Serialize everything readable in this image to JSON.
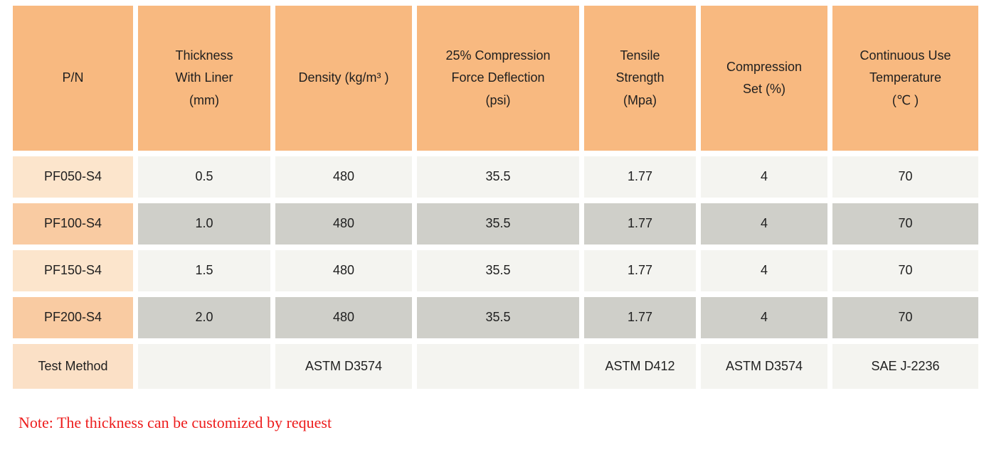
{
  "table": {
    "headers": [
      {
        "key": "pn",
        "label": "P/N"
      },
      {
        "key": "thickness",
        "label": "Thickness\nWith Liner\n(mm)"
      },
      {
        "key": "density",
        "label": "Density (kg/m³ )"
      },
      {
        "key": "cfd",
        "label": "25% Compression\nForce Deflection\n(psi)"
      },
      {
        "key": "tensile",
        "label": "Tensile\nStrength\n(Mpa)"
      },
      {
        "key": "compression",
        "label": "Compression\nSet (%)"
      },
      {
        "key": "temperature",
        "label": "Continuous Use\nTemperature\n(℃ )"
      }
    ],
    "rows": [
      {
        "variant": "light",
        "cells": [
          "PF050-S4",
          "0.5",
          "480",
          "35.5",
          "1.77",
          "4",
          "70"
        ]
      },
      {
        "variant": "dark",
        "cells": [
          "PF100-S4",
          "1.0",
          "480",
          "35.5",
          "1.77",
          "4",
          "70"
        ]
      },
      {
        "variant": "light",
        "cells": [
          "PF150-S4",
          "1.5",
          "480",
          "35.5",
          "1.77",
          "4",
          "70"
        ]
      },
      {
        "variant": "dark",
        "cells": [
          "PF200-S4",
          "2.0",
          "480",
          "35.5",
          "1.77",
          "4",
          "70"
        ]
      },
      {
        "variant": "test",
        "cells": [
          "Test Method",
          "",
          "ASTM D3574",
          "",
          "ASTM D412",
          "ASTM D3574",
          "SAE J-2236"
        ]
      }
    ]
  },
  "note": {
    "text": "Note: The thickness can be customized by request"
  },
  "colors": {
    "header_orange": "#f8b980",
    "row_peach_light": "#fce5cc",
    "row_peach_dark": "#f9cba2",
    "row_peach_test": "#fbe0c6",
    "data_gray_light": "#f4f4f0",
    "data_gray_dark": "#cfcfc9",
    "note_red": "#ed1c1c"
  }
}
